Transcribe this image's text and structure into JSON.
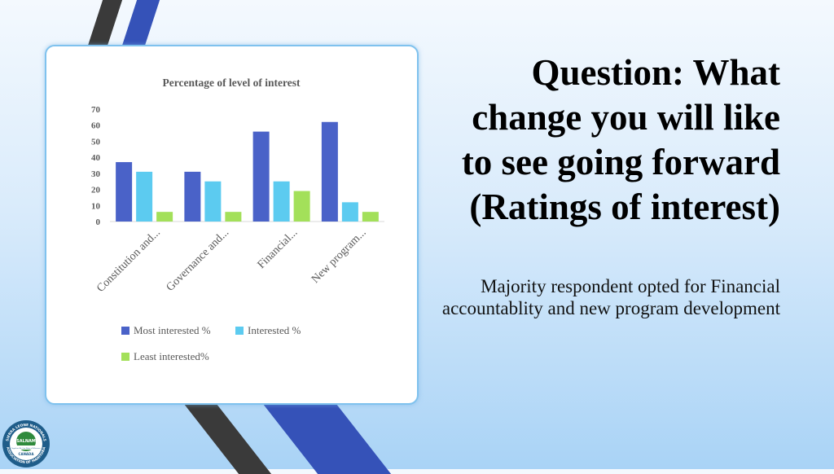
{
  "slide": {
    "question": "Question:  What change you will like to see going forward (Ratings of interest)",
    "subtitle": "Majority respondent opted for Financial accountablity and new program development"
  },
  "logo": {
    "top_text": "SIERRA LEONE NATIONALS",
    "center_text": "SALNAM",
    "banner_text": "Together We Can Make a Difference",
    "country_text": "CANADA",
    "bottom_text": "ASSOCIATION OF MANITOBA"
  },
  "colors": {
    "most": "#4a62c8",
    "interested": "#5ccbf0",
    "least": "#a3e05a",
    "stripe_dark": "#3c3c3c",
    "stripe_blue": "#3552b8"
  },
  "chart_data": {
    "type": "bar",
    "title": "Percentage of level of interest",
    "categories": [
      "Constitution and...",
      "Governance and...",
      "Financial...",
      "New program..."
    ],
    "series": [
      {
        "name": "Most interested %",
        "values": [
          37,
          31,
          56,
          62
        ]
      },
      {
        "name": "Interested %",
        "values": [
          31,
          25,
          25,
          12
        ]
      },
      {
        "name": "Least interested%",
        "values": [
          6,
          6,
          19,
          6
        ]
      }
    ],
    "yticks": [
      "0",
      "10",
      "20",
      "30",
      "40",
      "50",
      "60",
      "70"
    ],
    "ylim": [
      0,
      70
    ],
    "grid": false,
    "legend_position": "bottom"
  }
}
